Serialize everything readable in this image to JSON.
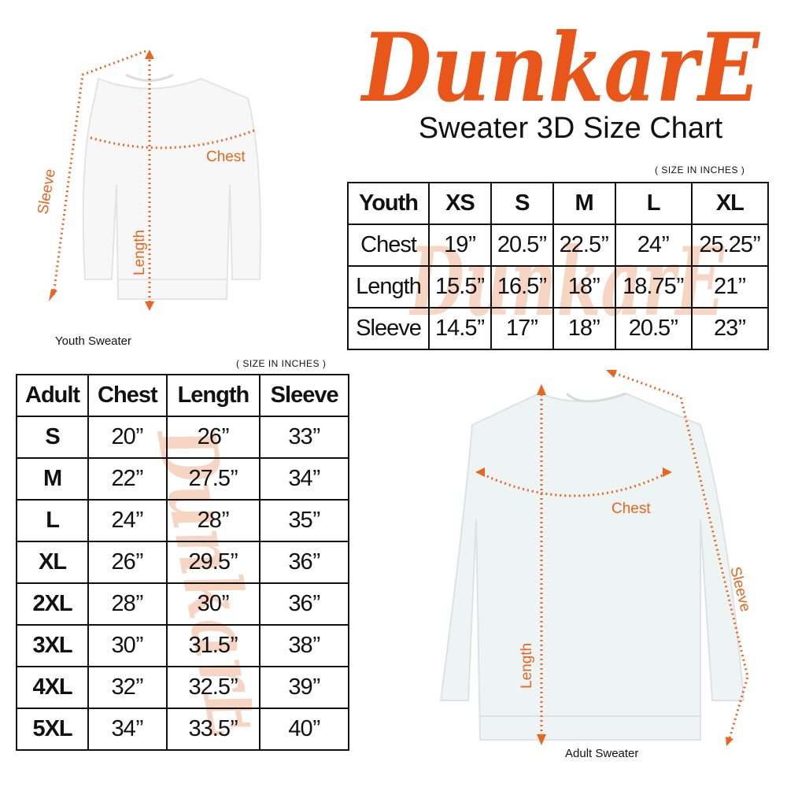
{
  "brand": {
    "logo_text": "DunkarE",
    "color": "#e8561a"
  },
  "title": "Sweater 3D Size Chart",
  "youth": {
    "units_note": "( SIZE IN INCHES )",
    "header": [
      "Youth",
      "XS",
      "S",
      "M",
      "L",
      "XL"
    ],
    "rows": [
      [
        "Chest",
        "19’’",
        "20.5’’",
        "22.5’’",
        "24’’",
        "25.25’’"
      ],
      [
        "Length",
        "15.5’’",
        "16.5’’",
        "18’’",
        "18.75’’",
        "21’’"
      ],
      [
        "Sleeve",
        "14.5’’",
        "17’’",
        "18’’",
        "20.5’’",
        "23’’"
      ]
    ],
    "image_label": "Youth Sweater",
    "measure_labels": {
      "chest": "Chest",
      "length": "Length",
      "sleeve": "Sleeve"
    }
  },
  "adult": {
    "units_note": "( SIZE IN INCHES )",
    "header": [
      "Adult",
      "Chest",
      "Length",
      "Sleeve"
    ],
    "rows": [
      [
        "S",
        "20’’",
        "26’’",
        "33’’"
      ],
      [
        "M",
        "22’’",
        "27.5’’",
        "34’’"
      ],
      [
        "L",
        "24’’",
        "28’’",
        "35’’"
      ],
      [
        "XL",
        "26’’",
        "29.5’’",
        "36’’"
      ],
      [
        "2XL",
        "28’’",
        "30’’",
        "36’’"
      ],
      [
        "3XL",
        "30’’",
        "31.5’’",
        "38’’"
      ],
      [
        "4XL",
        "32’’",
        "32.5’’",
        "39’’"
      ],
      [
        "5XL",
        "34’’",
        "33.5’’",
        "40’’"
      ]
    ],
    "image_label": "Adult Sweater",
    "measure_labels": {
      "chest": "Chest",
      "length": "Length",
      "sleeve": "Sleeve"
    }
  },
  "accent_color": "#e8661f"
}
